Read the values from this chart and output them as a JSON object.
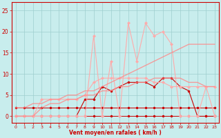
{
  "x": [
    0,
    1,
    2,
    3,
    4,
    5,
    6,
    7,
    8,
    9,
    10,
    11,
    12,
    13,
    14,
    15,
    16,
    17,
    18,
    19,
    20,
    21,
    22,
    23
  ],
  "line_zero_dots": [
    0,
    0,
    0,
    0,
    0,
    0,
    0,
    0,
    0,
    0,
    0,
    0,
    0,
    0,
    0,
    0,
    0,
    0,
    0,
    0,
    0,
    0,
    0,
    0
  ],
  "line_flat_2": [
    2,
    2,
    2,
    2,
    2,
    2,
    2,
    2,
    2,
    2,
    2,
    2,
    2,
    2,
    2,
    2,
    2,
    2,
    2,
    2,
    2,
    2,
    2,
    2
  ],
  "line_dark_zigzag": [
    0,
    0,
    0,
    0,
    0,
    0,
    0,
    0,
    4,
    4,
    7,
    6,
    7,
    8,
    8,
    8,
    7,
    9,
    9,
    7,
    6,
    0,
    0,
    0
  ],
  "line_pink_plateau": [
    0,
    0,
    0,
    4,
    4,
    4,
    4,
    4,
    5,
    8,
    9,
    9,
    9,
    9,
    9,
    9,
    8,
    8,
    7,
    7,
    7,
    7,
    7,
    7
  ],
  "line_pink_spiky": [
    0,
    0,
    0,
    0,
    0,
    0,
    0,
    0,
    0,
    19,
    0,
    13,
    0,
    22,
    13,
    22,
    19,
    20,
    17,
    0,
    0,
    0,
    7,
    0
  ],
  "line_linear_rise": [
    2,
    2,
    3,
    3,
    4,
    4,
    5,
    5,
    6,
    6,
    7,
    8,
    9,
    10,
    11,
    12,
    13,
    14,
    15,
    16,
    17,
    17,
    17,
    17
  ],
  "line_linear_rise2": [
    0,
    0,
    0,
    2,
    3,
    3,
    4,
    4,
    5,
    5,
    6,
    6,
    7,
    7,
    8,
    8,
    9,
    9,
    9,
    9,
    8,
    8,
    7,
    7
  ],
  "bg_color": "#c8eded",
  "grid_color": "#9ecece",
  "color_dark_red": "#cc0000",
  "color_light_pink": "#ffaaaa",
  "color_medium_pink": "#ff8888",
  "xlabel": "Vent moyen/en rafales ( km/h )",
  "ylim": [
    -1.5,
    27
  ],
  "xlim": [
    -0.5,
    23.5
  ],
  "yticks": [
    0,
    5,
    10,
    15,
    20,
    25
  ],
  "xticks": [
    0,
    1,
    2,
    3,
    4,
    5,
    6,
    7,
    8,
    9,
    10,
    11,
    12,
    13,
    14,
    15,
    16,
    17,
    18,
    19,
    20,
    21,
    22,
    23
  ]
}
